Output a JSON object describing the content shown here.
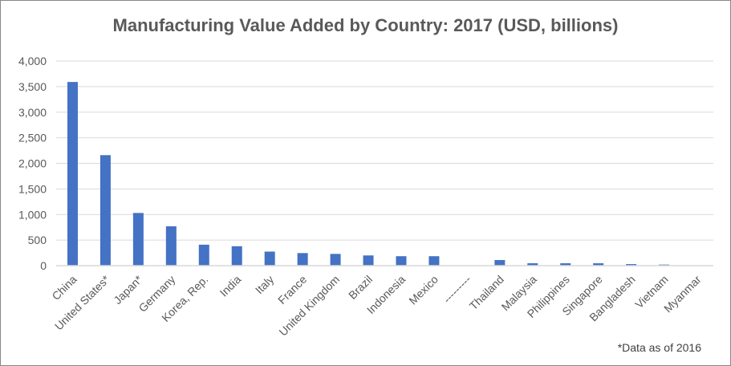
{
  "chart_data": {
    "type": "bar",
    "title": "Manufacturing Value Added by Country: 2017 (USD, billions)",
    "xlabel": "",
    "ylabel": "",
    "ylim": [
      0,
      4000
    ],
    "yticks": [
      "0",
      "500",
      "1,000",
      "1,500",
      "2,000",
      "2,500",
      "3,000",
      "3,500",
      "4,000"
    ],
    "grid": true,
    "categories": [
      "China",
      "United States*",
      "Japan*",
      "Germany",
      "Korea, Rep.",
      "India",
      "Italy",
      "France",
      "United Kingdom",
      "Brazil",
      "Indonesia",
      "Mexico",
      "---------",
      "Thailand",
      "Malaysia",
      "Philippines",
      "Singapore",
      "Bangladesh",
      "Vietnam",
      "Myanmar"
    ],
    "values": [
      3590,
      2160,
      1030,
      770,
      410,
      380,
      275,
      246,
      230,
      200,
      185,
      185,
      null,
      110,
      47,
      47,
      47,
      31,
      21,
      5
    ],
    "bar_color": "#4472C4",
    "annotation": "*Data as of 2016"
  }
}
